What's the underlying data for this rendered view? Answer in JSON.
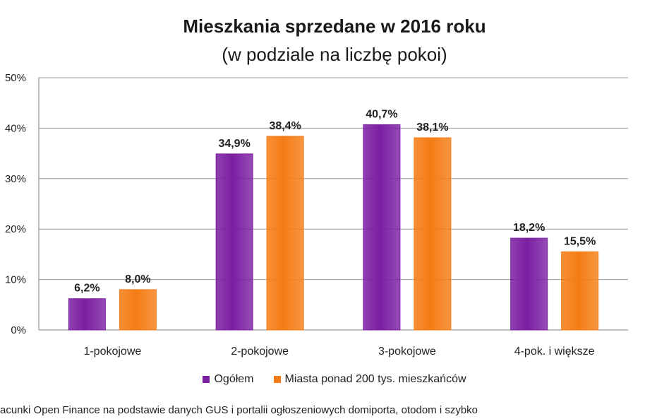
{
  "chart_data": {
    "type": "bar",
    "title": "Mieszkania sprzedane w 2016 roku",
    "subtitle": "(w podziale na liczbę pokoi)",
    "categories": [
      "1-pokojowe",
      "2-pokojowe",
      "3-pokojowe",
      "4-pok. i większe"
    ],
    "series": [
      {
        "name": "Ogółem",
        "color": "#7B1FA2",
        "values": [
          6.2,
          34.9,
          40.7,
          18.2
        ],
        "labels": [
          "6,2%",
          "34,9%",
          "40,7%",
          "18,2%"
        ]
      },
      {
        "name": "Miasta ponad 200 tys. mieszkańców",
        "color": "#F57C14",
        "values": [
          8.0,
          38.4,
          38.1,
          15.5
        ],
        "labels": [
          "8,0%",
          "38,4%",
          "38,1%",
          "15,5%"
        ]
      }
    ],
    "ylim": [
      0,
      50
    ],
    "yticks": [
      0,
      10,
      20,
      30,
      40,
      50
    ],
    "ytick_labels": [
      "0%",
      "10%",
      "20%",
      "30%",
      "40%",
      "50%"
    ],
    "grid": true,
    "legend": "bottom"
  },
  "source_text": "acunki Open Finance na podstawie danych GUS i portalii ogłoszeniowych domiporta, otodom i szybko"
}
